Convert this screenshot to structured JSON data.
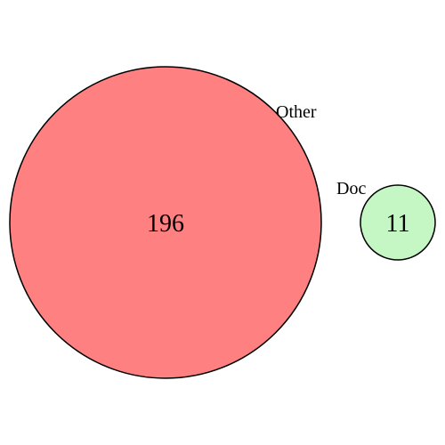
{
  "diagram": {
    "type": "venn",
    "sets": [
      {
        "label": "Other",
        "count": "196",
        "fill": "#ff8080"
      },
      {
        "label": "Doc",
        "count": "11",
        "fill": "#c4f7c4"
      }
    ]
  }
}
